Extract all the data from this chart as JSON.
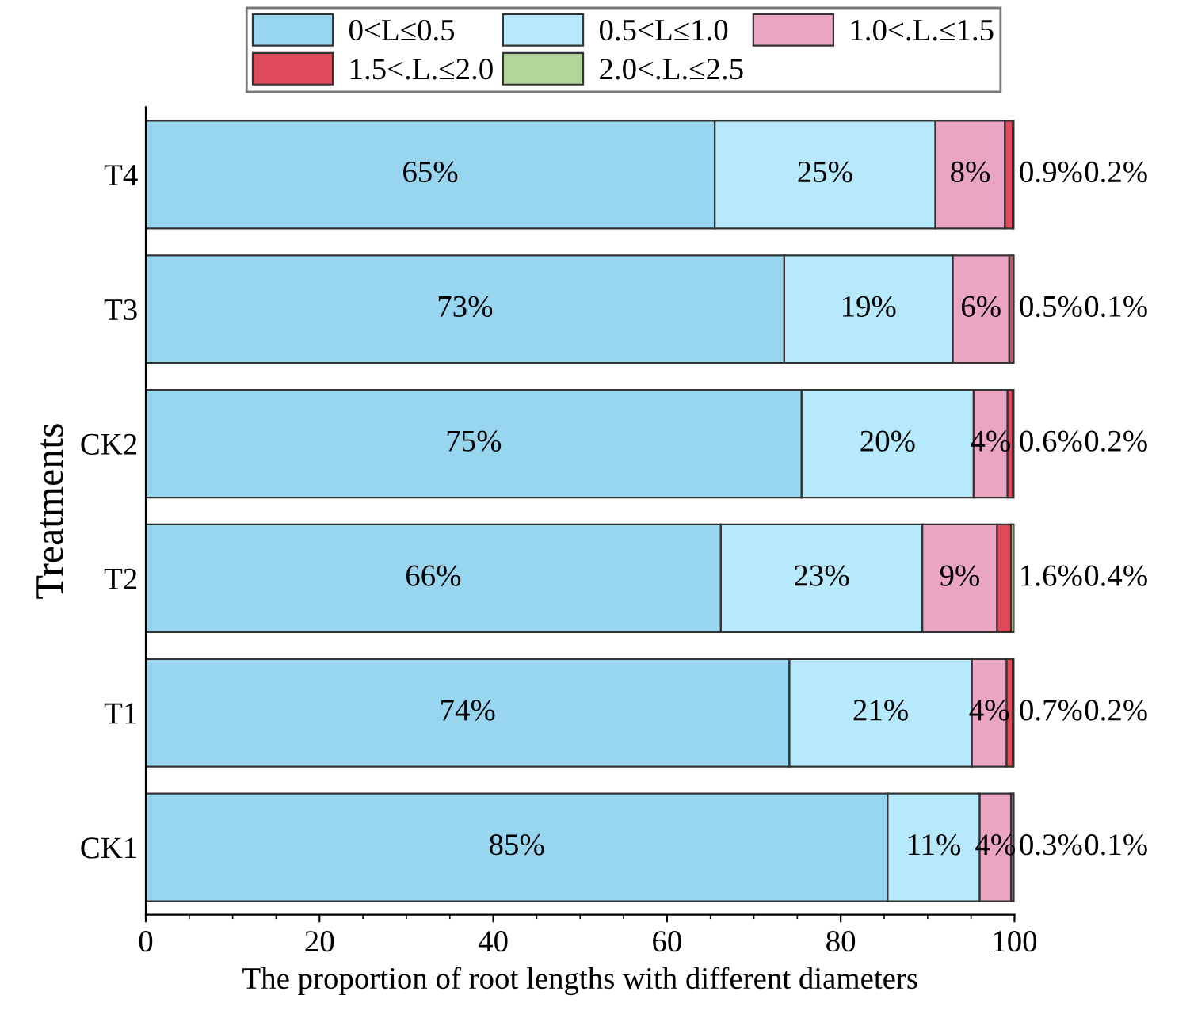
{
  "chart_data": {
    "type": "bar",
    "orientation": "horizontal",
    "stacked": true,
    "ylabel": "Treatments",
    "xlabel": "The proportion of root lengths with different diameters",
    "categories": [
      "T4",
      "T3",
      "CK2",
      "T2",
      "T1",
      "CK1"
    ],
    "xlim": [
      0,
      100
    ],
    "xticks": [
      0,
      20,
      40,
      60,
      80,
      100
    ],
    "legend": "top",
    "grid": false,
    "series": [
      {
        "name": "0<L≤0.5",
        "color": "#98d5ef",
        "values": [
          65.5,
          73.5,
          75.5,
          66.2,
          74.1,
          85.4
        ],
        "value_labels": [
          "65%",
          "73%",
          "75%",
          "66%",
          "74%",
          "85%"
        ]
      },
      {
        "name": "0.5<L≤1.0",
        "color": "#b6e9fb",
        "values": [
          25.4,
          19.4,
          19.8,
          23.2,
          21.0,
          10.6
        ],
        "value_labels": [
          "25%",
          "19%",
          "20%",
          "23%",
          "21%",
          "11%"
        ]
      },
      {
        "name": "1.0<.L.≤1.5",
        "color": "#eaa5c3",
        "values": [
          8.0,
          6.5,
          3.9,
          8.6,
          4.0,
          3.6
        ],
        "value_labels": [
          "8%",
          "6%",
          "4%",
          "9%",
          "4%",
          "4%"
        ]
      },
      {
        "name": "1.5<.L.≤2.0",
        "color": "#de4a59",
        "values": [
          0.9,
          0.5,
          0.6,
          1.6,
          0.7,
          0.3
        ],
        "value_labels": [
          "0.9%",
          "0.5%",
          "0.6%",
          "1.6%",
          "0.7%",
          "0.3%"
        ]
      },
      {
        "name": "2.0<.L.≤2.5",
        "color": "#b2d59b",
        "values": [
          0.2,
          0.1,
          0.2,
          0.4,
          0.2,
          0.1
        ],
        "value_labels": [
          "0.2%",
          "0.1%",
          "0.2%",
          "0.4%",
          "0.2%",
          "0.1%"
        ]
      }
    ]
  }
}
